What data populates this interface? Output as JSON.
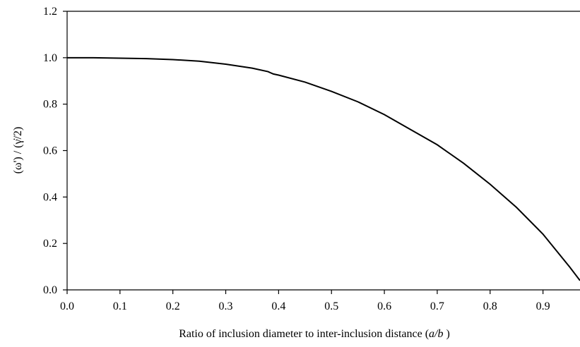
{
  "chart_data": {
    "type": "line",
    "title": "",
    "xlabel": "Ratio of inclusion diameter to inter-inclusion distance (a/b )",
    "xlabel_parts": [
      "Ratio of inclusion diameter to inter-inclusion distance (",
      "a/b",
      " )"
    ],
    "ylabel": "(ω') / (γ̇/2)",
    "xlim": [
      0.0,
      0.97
    ],
    "ylim": [
      0.0,
      1.2
    ],
    "xticks": [
      "0.0",
      "0.1",
      "0.2",
      "0.3",
      "0.4",
      "0.5",
      "0.6",
      "0.7",
      "0.8",
      "0.9"
    ],
    "yticks": [
      "0.0",
      "0.2",
      "0.4",
      "0.6",
      "0.8",
      "1.0",
      "1.2"
    ],
    "grid": false,
    "legend": "none",
    "series": [
      {
        "x": [
          0.0,
          0.05,
          0.1,
          0.15,
          0.2,
          0.25,
          0.3,
          0.35,
          0.38,
          0.39,
          0.4,
          0.45,
          0.5,
          0.55,
          0.6,
          0.65,
          0.7,
          0.75,
          0.8,
          0.85,
          0.9,
          0.95,
          0.97
        ],
        "y": [
          1.0,
          1.0,
          0.998,
          0.996,
          0.992,
          0.985,
          0.972,
          0.955,
          0.94,
          0.93,
          0.925,
          0.895,
          0.855,
          0.81,
          0.755,
          0.69,
          0.625,
          0.545,
          0.455,
          0.355,
          0.24,
          0.1,
          0.04
        ]
      }
    ]
  }
}
